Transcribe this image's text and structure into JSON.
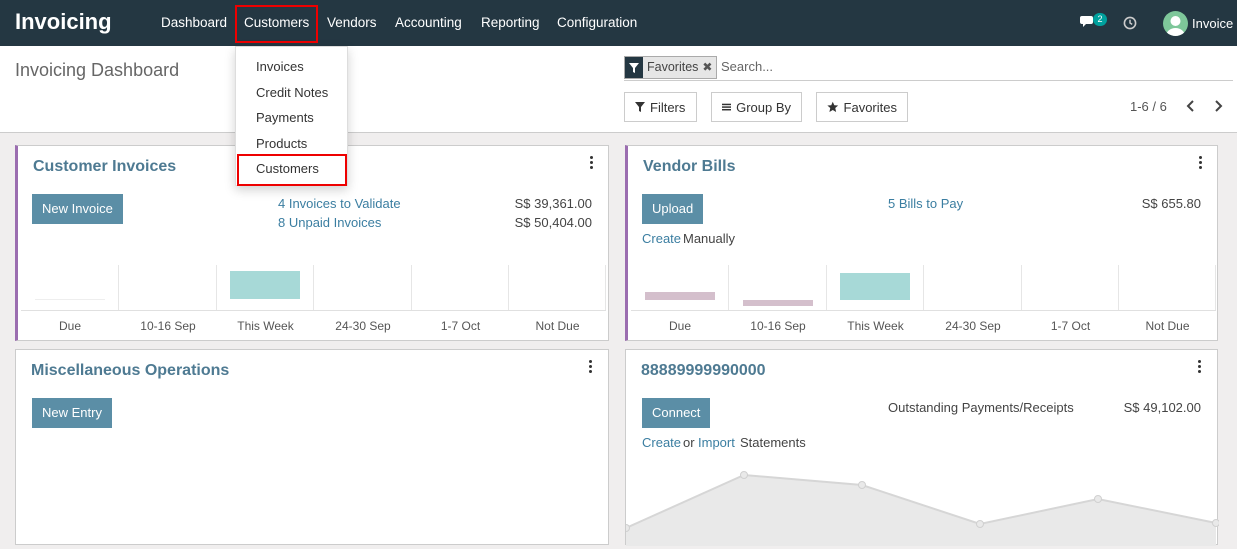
{
  "navbar": {
    "brand": "Invoicing",
    "menu": [
      {
        "key": "dashboard",
        "label": "Dashboard"
      },
      {
        "key": "customers",
        "label": "Customers"
      },
      {
        "key": "vendors",
        "label": "Vendors"
      },
      {
        "key": "accounting",
        "label": "Accounting"
      },
      {
        "key": "reporting",
        "label": "Reporting"
      },
      {
        "key": "configuration",
        "label": "Configuration"
      }
    ],
    "messages_count": "2",
    "user_name": "Invoice",
    "colors": {
      "bg": "#243742",
      "highlight": "#ee0000"
    }
  },
  "customers_menu": {
    "items": [
      {
        "key": "invoices",
        "label": "Invoices"
      },
      {
        "key": "credit-notes",
        "label": "Credit Notes"
      },
      {
        "key": "payments",
        "label": "Payments"
      },
      {
        "key": "products",
        "label": "Products"
      },
      {
        "key": "customers",
        "label": "Customers"
      }
    ],
    "highlighted": "Customers"
  },
  "control_panel": {
    "title": "Invoicing Dashboard",
    "facet_label": "Favorites",
    "search_placeholder": "Search...",
    "filters_label": "Filters",
    "group_by_label": "Group By",
    "favorites_label": "Favorites",
    "pager_text": "1-6 / 6"
  },
  "cards": {
    "customer_invoices": {
      "title": "Customer Invoices",
      "button": "New Invoice",
      "links": [
        {
          "label": "4 Invoices to Validate",
          "amount": "S$ 39,361.00"
        },
        {
          "label": "8 Unpaid Invoices",
          "amount": "S$ 50,404.00"
        }
      ],
      "chart_labels": [
        "Due",
        "10-16 Sep",
        "This Week",
        "24-30 Sep",
        "1-7 Oct",
        "Not Due"
      ]
    },
    "vendor_bills": {
      "title": "Vendor Bills",
      "button": "Upload",
      "links": [
        {
          "label": "5 Bills to Pay",
          "amount": "S$ 655.80"
        }
      ],
      "create_link": "Create",
      "create_suffix": "Manually",
      "chart_labels": [
        "Due",
        "10-16 Sep",
        "This Week",
        "24-30 Sep",
        "1-7 Oct",
        "Not Due"
      ]
    },
    "misc_operations": {
      "title": "Miscellaneous Operations",
      "button": "New Entry"
    },
    "bank": {
      "title": "88889999990000",
      "button": "Connect",
      "outstanding_label": "Outstanding Payments/Receipts",
      "outstanding_amount": "S$ 49,102.00",
      "create_link": "Create",
      "or_text": "or",
      "import_link": "Import",
      "statements_text": "Statements"
    }
  },
  "colors": {
    "accent_purple": "#9b6db0",
    "title_blue": "#4e7a92",
    "button_blue": "#5b8ea6",
    "bar_teal": "#a7d9d7",
    "bar_mauve": "#d4bfcc"
  }
}
